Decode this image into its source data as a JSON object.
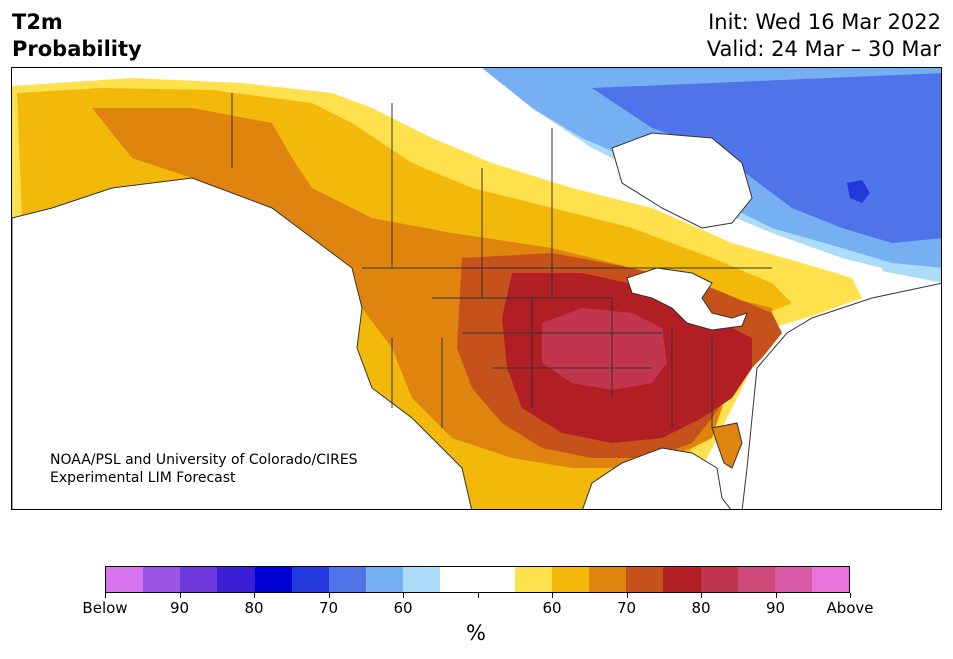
{
  "header": {
    "title_line1": "T2m",
    "title_line2": "Probability",
    "init_text": "Init: Wed 16 Mar 2022",
    "valid_text": "Valid: 24 Mar – 30 Mar"
  },
  "map": {
    "credit_line1": "NOAA/PSL and University of Colorado/CIRES",
    "credit_line2": "Experimental LIM Forecast"
  },
  "colorbar": {
    "colors": [
      "#d574ec",
      "#9a55e6",
      "#6b37da",
      "#3a1fd6",
      "#0000d0",
      "#2238dc",
      "#4f73e8",
      "#76aff2",
      "#abdcfa",
      "#ffffff",
      "#ffffff",
      "#ffe04d",
      "#f2b90a",
      "#df840f",
      "#c4521a",
      "#b11f24",
      "#c1354f",
      "#cd4a79",
      "#da5ca8",
      "#e874dc"
    ],
    "tick_labels": [
      "Below",
      "90",
      "80",
      "70",
      "60",
      "",
      "60",
      "70",
      "80",
      "90",
      "Above"
    ],
    "unit": "%"
  }
}
